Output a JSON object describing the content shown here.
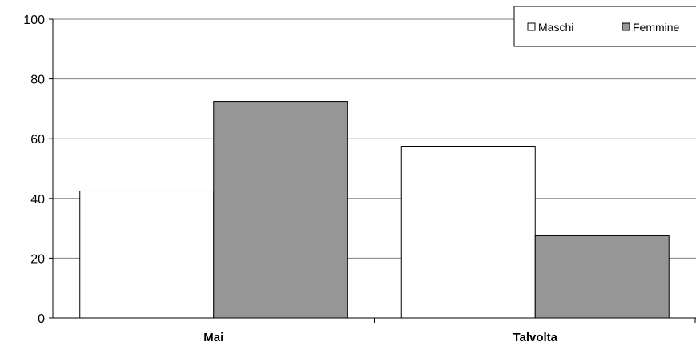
{
  "chart_data": {
    "type": "bar",
    "categories": [
      "Mai",
      "Talvolta"
    ],
    "series": [
      {
        "name": "Maschi",
        "values": [
          42.5,
          57.5
        ],
        "color": "#ffffff"
      },
      {
        "name": "Femmine",
        "values": [
          72.5,
          27.5
        ],
        "color": "#969696"
      }
    ],
    "ylim": [
      0,
      100
    ],
    "yticks": [
      "0",
      "20",
      "40",
      "60",
      "80",
      "100"
    ],
    "grid": true,
    "legend": "top-right"
  }
}
